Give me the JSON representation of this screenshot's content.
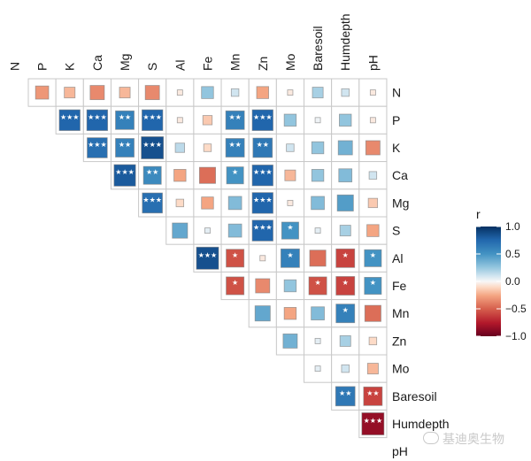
{
  "chart_data": {
    "type": "heatmap",
    "title": "",
    "variables": [
      "N",
      "P",
      "K",
      "Ca",
      "Mg",
      "S",
      "Al",
      "Fe",
      "Mn",
      "Zn",
      "Mo",
      "Baresoil",
      "Humdepth",
      "pH"
    ],
    "row_labels": [
      "N",
      "P",
      "K",
      "Ca",
      "Mg",
      "S",
      "Al",
      "Fe",
      "Mn",
      "Zn",
      "Mo",
      "Baresoil",
      "Humdepth",
      "pH"
    ],
    "col_labels": [
      "N",
      "P",
      "K",
      "Ca",
      "Mg",
      "S",
      "Al",
      "Fe",
      "Mn",
      "Zn",
      "Mo",
      "Baresoil",
      "Humdepth",
      "pH"
    ],
    "shape": "square",
    "layout": "upper",
    "cells": [
      {
        "row": "N",
        "col": "P",
        "r": -0.3,
        "sig": ""
      },
      {
        "row": "N",
        "col": "K",
        "r": -0.2,
        "sig": ""
      },
      {
        "row": "N",
        "col": "Ca",
        "r": -0.35,
        "sig": ""
      },
      {
        "row": "N",
        "col": "Mg",
        "r": -0.2,
        "sig": ""
      },
      {
        "row": "N",
        "col": "S",
        "r": -0.35,
        "sig": ""
      },
      {
        "row": "N",
        "col": "Al",
        "r": -0.05,
        "sig": ""
      },
      {
        "row": "N",
        "col": "Fe",
        "r": 0.25,
        "sig": ""
      },
      {
        "row": "N",
        "col": "Mn",
        "r": 0.1,
        "sig": ""
      },
      {
        "row": "N",
        "col": "Zn",
        "r": -0.25,
        "sig": ""
      },
      {
        "row": "N",
        "col": "Mo",
        "r": -0.05,
        "sig": ""
      },
      {
        "row": "N",
        "col": "Baresoil",
        "r": 0.2,
        "sig": ""
      },
      {
        "row": "N",
        "col": "Humdepth",
        "r": 0.1,
        "sig": ""
      },
      {
        "row": "N",
        "col": "pH",
        "r": -0.05,
        "sig": ""
      },
      {
        "row": "P",
        "col": "K",
        "r": 0.75,
        "sig": "***"
      },
      {
        "row": "P",
        "col": "Ca",
        "r": 0.75,
        "sig": "***"
      },
      {
        "row": "P",
        "col": "Mg",
        "r": 0.6,
        "sig": "**"
      },
      {
        "row": "P",
        "col": "S",
        "r": 0.75,
        "sig": "***"
      },
      {
        "row": "P",
        "col": "Al",
        "r": -0.05,
        "sig": ""
      },
      {
        "row": "P",
        "col": "Fe",
        "r": -0.15,
        "sig": ""
      },
      {
        "row": "P",
        "col": "Mn",
        "r": 0.6,
        "sig": "**"
      },
      {
        "row": "P",
        "col": "Zn",
        "r": 0.75,
        "sig": "***"
      },
      {
        "row": "P",
        "col": "Mo",
        "r": 0.25,
        "sig": ""
      },
      {
        "row": "P",
        "col": "Baresoil",
        "r": 0.02,
        "sig": ""
      },
      {
        "row": "P",
        "col": "Humdepth",
        "r": 0.25,
        "sig": ""
      },
      {
        "row": "P",
        "col": "pH",
        "r": -0.05,
        "sig": ""
      },
      {
        "row": "K",
        "col": "Ca",
        "r": 0.7,
        "sig": "***"
      },
      {
        "row": "K",
        "col": "Mg",
        "r": 0.6,
        "sig": "**"
      },
      {
        "row": "K",
        "col": "S",
        "r": 0.85,
        "sig": "***"
      },
      {
        "row": "K",
        "col": "Al",
        "r": 0.15,
        "sig": ""
      },
      {
        "row": "K",
        "col": "Fe",
        "r": -0.1,
        "sig": ""
      },
      {
        "row": "K",
        "col": "Mn",
        "r": 0.6,
        "sig": "**"
      },
      {
        "row": "K",
        "col": "Zn",
        "r": 0.65,
        "sig": "**"
      },
      {
        "row": "K",
        "col": "Mo",
        "r": 0.1,
        "sig": ""
      },
      {
        "row": "K",
        "col": "Baresoil",
        "r": 0.25,
        "sig": ""
      },
      {
        "row": "K",
        "col": "Humdepth",
        "r": 0.35,
        "sig": ""
      },
      {
        "row": "K",
        "col": "pH",
        "r": -0.35,
        "sig": ""
      },
      {
        "row": "Ca",
        "col": "Mg",
        "r": 0.8,
        "sig": "***"
      },
      {
        "row": "Ca",
        "col": "S",
        "r": 0.55,
        "sig": "**"
      },
      {
        "row": "Ca",
        "col": "Al",
        "r": -0.25,
        "sig": ""
      },
      {
        "row": "Ca",
        "col": "Fe",
        "r": -0.45,
        "sig": ""
      },
      {
        "row": "Ca",
        "col": "Mn",
        "r": 0.5,
        "sig": "*"
      },
      {
        "row": "Ca",
        "col": "Zn",
        "r": 0.75,
        "sig": "***"
      },
      {
        "row": "Ca",
        "col": "Mo",
        "r": -0.2,
        "sig": ""
      },
      {
        "row": "Ca",
        "col": "Baresoil",
        "r": 0.25,
        "sig": ""
      },
      {
        "row": "Ca",
        "col": "Humdepth",
        "r": 0.3,
        "sig": ""
      },
      {
        "row": "Ca",
        "col": "pH",
        "r": 0.1,
        "sig": ""
      },
      {
        "row": "Mg",
        "col": "S",
        "r": 0.7,
        "sig": "***"
      },
      {
        "row": "Mg",
        "col": "Al",
        "r": -0.1,
        "sig": ""
      },
      {
        "row": "Mg",
        "col": "Fe",
        "r": -0.25,
        "sig": ""
      },
      {
        "row": "Mg",
        "col": "Mn",
        "r": 0.3,
        "sig": ""
      },
      {
        "row": "Mg",
        "col": "Zn",
        "r": 0.75,
        "sig": "***"
      },
      {
        "row": "Mg",
        "col": "Mo",
        "r": -0.05,
        "sig": ""
      },
      {
        "row": "Mg",
        "col": "Baresoil",
        "r": 0.3,
        "sig": ""
      },
      {
        "row": "Mg",
        "col": "Humdepth",
        "r": 0.45,
        "sig": ""
      },
      {
        "row": "Mg",
        "col": "pH",
        "r": -0.15,
        "sig": ""
      },
      {
        "row": "S",
        "col": "Al",
        "r": 0.4,
        "sig": ""
      },
      {
        "row": "S",
        "col": "Fe",
        "r": 0.05,
        "sig": ""
      },
      {
        "row": "S",
        "col": "Mn",
        "r": 0.3,
        "sig": ""
      },
      {
        "row": "S",
        "col": "Zn",
        "r": 0.75,
        "sig": "***"
      },
      {
        "row": "S",
        "col": "Mo",
        "r": 0.5,
        "sig": "*"
      },
      {
        "row": "S",
        "col": "Baresoil",
        "r": 0.05,
        "sig": ""
      },
      {
        "row": "S",
        "col": "Humdepth",
        "r": 0.2,
        "sig": ""
      },
      {
        "row": "S",
        "col": "pH",
        "r": -0.25,
        "sig": ""
      },
      {
        "row": "Al",
        "col": "Fe",
        "r": 0.85,
        "sig": "***"
      },
      {
        "row": "Al",
        "col": "Mn",
        "r": -0.55,
        "sig": "*"
      },
      {
        "row": "Al",
        "col": "Zn",
        "r": -0.05,
        "sig": ""
      },
      {
        "row": "Al",
        "col": "Mo",
        "r": 0.6,
        "sig": "*"
      },
      {
        "row": "Al",
        "col": "Baresoil",
        "r": -0.45,
        "sig": ""
      },
      {
        "row": "Al",
        "col": "Humdepth",
        "r": -0.6,
        "sig": "*"
      },
      {
        "row": "Al",
        "col": "pH",
        "r": 0.5,
        "sig": "*"
      },
      {
        "row": "Fe",
        "col": "Mn",
        "r": -0.55,
        "sig": "*"
      },
      {
        "row": "Fe",
        "col": "Zn",
        "r": -0.35,
        "sig": ""
      },
      {
        "row": "Fe",
        "col": "Mo",
        "r": 0.25,
        "sig": ""
      },
      {
        "row": "Fe",
        "col": "Baresoil",
        "r": -0.55,
        "sig": "*"
      },
      {
        "row": "Fe",
        "col": "Humdepth",
        "r": -0.6,
        "sig": "*"
      },
      {
        "row": "Fe",
        "col": "pH",
        "r": 0.5,
        "sig": "*"
      },
      {
        "row": "Mn",
        "col": "Zn",
        "r": 0.4,
        "sig": ""
      },
      {
        "row": "Mn",
        "col": "Mo",
        "r": -0.25,
        "sig": ""
      },
      {
        "row": "Mn",
        "col": "Baresoil",
        "r": 0.3,
        "sig": ""
      },
      {
        "row": "Mn",
        "col": "Humdepth",
        "r": 0.6,
        "sig": "*"
      },
      {
        "row": "Mn",
        "col": "pH",
        "r": -0.45,
        "sig": ""
      },
      {
        "row": "Zn",
        "col": "Mo",
        "r": 0.35,
        "sig": ""
      },
      {
        "row": "Zn",
        "col": "Baresoil",
        "r": 0.05,
        "sig": ""
      },
      {
        "row": "Zn",
        "col": "Humdepth",
        "r": 0.2,
        "sig": ""
      },
      {
        "row": "Zn",
        "col": "pH",
        "r": -0.1,
        "sig": ""
      },
      {
        "row": "Mo",
        "col": "Baresoil",
        "r": 0.05,
        "sig": ""
      },
      {
        "row": "Mo",
        "col": "Humdepth",
        "r": 0.1,
        "sig": ""
      },
      {
        "row": "Mo",
        "col": "pH",
        "r": -0.2,
        "sig": ""
      },
      {
        "row": "Baresoil",
        "col": "Humdepth",
        "r": 0.65,
        "sig": "**"
      },
      {
        "row": "Baresoil",
        "col": "pH",
        "r": -0.6,
        "sig": "**"
      },
      {
        "row": "Humdepth",
        "col": "pH",
        "r": -0.85,
        "sig": "***"
      }
    ],
    "legend": {
      "title": "r",
      "position": "right",
      "ticks": [
        "1.0",
        "0.5",
        "0.0",
        "−0.5",
        "−1.0"
      ],
      "range": [
        -1.0,
        1.0
      ],
      "colors": {
        "neg": "#67001F",
        "mid": "#F7F7F7",
        "pos": "#053061"
      }
    }
  },
  "watermark": "基迪奥生物"
}
